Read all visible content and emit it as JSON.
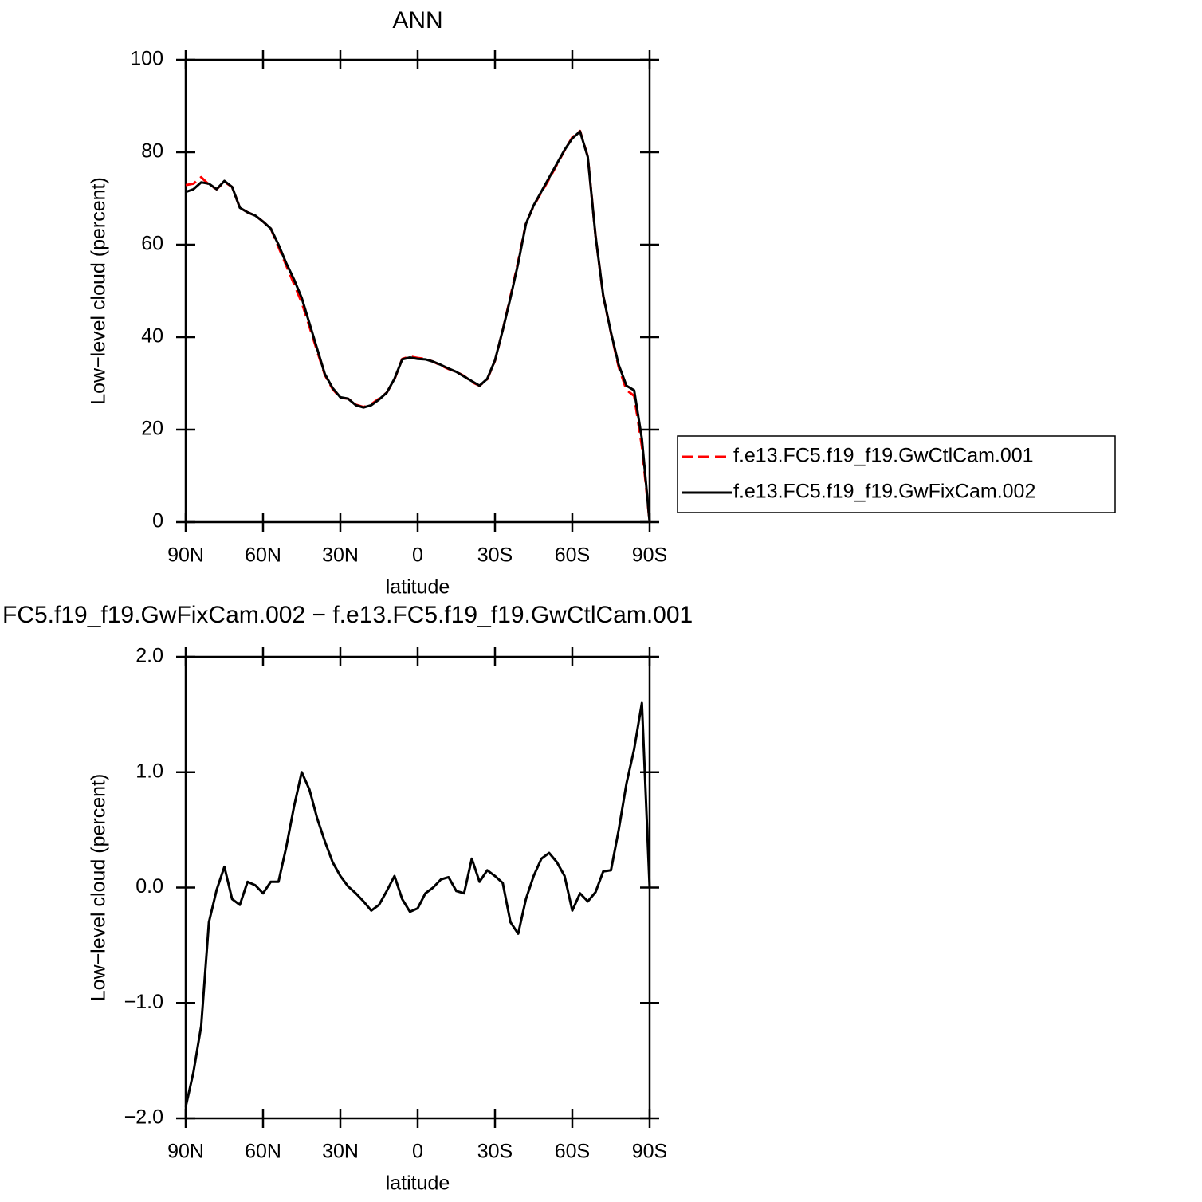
{
  "chart_data": [
    {
      "type": "line",
      "title": "ANN",
      "xlabel": "latitude",
      "ylabel": "Low−level cloud (percent)",
      "x": [
        90,
        87,
        84,
        81,
        78,
        75,
        72,
        69,
        66,
        63,
        60,
        57,
        54,
        51,
        48,
        45,
        42,
        39,
        36,
        33,
        30,
        27,
        24,
        21,
        18,
        15,
        12,
        9,
        6,
        3,
        0,
        -3,
        -6,
        -9,
        -12,
        -15,
        -18,
        -21,
        -24,
        -27,
        -30,
        -33,
        -36,
        -39,
        -42,
        -45,
        -48,
        -51,
        -54,
        -57,
        -60,
        -63,
        -66,
        -69,
        -72,
        -75,
        -78,
        -81,
        -84,
        -87,
        -90
      ],
      "series": [
        {
          "name": "f.e13.FC5.f19_f19.GwCtlCam.001",
          "color": "#ff0000",
          "dashed": true,
          "values": [
            72.9,
            73.2,
            74.6,
            73,
            72,
            73.6,
            72.5,
            68,
            67,
            66.3,
            65,
            63.5,
            59.5,
            55.5,
            51.5,
            47.5,
            42.3,
            37,
            31.8,
            28.8,
            26.9,
            26.7,
            25.4,
            24.9,
            25.5,
            26.7,
            28,
            30.9,
            35.3,
            35.8,
            35.5,
            35.3,
            34.7,
            33.9,
            33.1,
            32.5,
            31.6,
            30.3,
            29.5,
            30.9,
            34.9,
            41.5,
            48.8,
            56.4,
            64.6,
            68.4,
            71.3,
            74.2,
            77.3,
            80.4,
            83.2,
            84.6,
            79.1,
            62,
            48.9,
            40.9,
            33.5,
            28.6,
            27.3,
            16.4,
            0
          ]
        },
        {
          "name": "f.e13.FC5.f19_f19.GwFixCam.002",
          "color": "#000000",
          "dashed": false,
          "values": [
            71.4,
            72,
            73.5,
            73.2,
            72,
            73.8,
            72.5,
            68,
            67,
            66.3,
            65,
            63.5,
            60,
            56,
            52.5,
            48.5,
            43,
            37.5,
            32,
            29,
            27,
            26.7,
            25.3,
            24.8,
            25.3,
            26.5,
            28,
            31,
            35.2,
            35.6,
            35.3,
            35.2,
            34.7,
            34,
            33.2,
            32.5,
            31.5,
            30.5,
            29.5,
            31,
            35,
            41.5,
            48.5,
            56,
            64.5,
            68.5,
            71.5,
            74.5,
            77.5,
            80.5,
            83,
            84.5,
            79,
            62,
            49,
            41,
            34,
            29.5,
            28.5,
            18,
            0
          ]
        }
      ],
      "xlim": [
        90,
        -90
      ],
      "xticks": [
        {
          "value": 90,
          "label": "90N"
        },
        {
          "value": 60,
          "label": "60N"
        },
        {
          "value": 30,
          "label": "30N"
        },
        0,
        {
          "value": -30,
          "label": "30S"
        },
        {
          "value": -60,
          "label": "60S"
        },
        {
          "value": -90,
          "label": "90S"
        }
      ],
      "ylim": [
        0,
        100
      ],
      "yticks": [
        0,
        20,
        40,
        60,
        80,
        100
      ],
      "grid": false,
      "legend": "right"
    },
    {
      "type": "line",
      "title": "FC5.f19_f19.GwFixCam.002 − f.e13.FC5.f19_f19.GwCtlCam.001",
      "xlabel": "latitude",
      "ylabel": "Low−level cloud (percent)",
      "x": [
        90,
        87,
        84,
        81,
        78,
        75,
        72,
        69,
        66,
        63,
        60,
        57,
        54,
        51,
        48,
        45,
        42,
        39,
        36,
        33,
        30,
        27,
        24,
        21,
        18,
        15,
        12,
        9,
        6,
        3,
        0,
        -3,
        -6,
        -9,
        -12,
        -15,
        -18,
        -21,
        -24,
        -27,
        -30,
        -33,
        -36,
        -39,
        -42,
        -45,
        -48,
        -51,
        -54,
        -57,
        -60,
        -63,
        -66,
        -69,
        -72,
        -75,
        -78,
        -81,
        -84,
        -87,
        -90
      ],
      "values": [
        -1.9,
        -1.6,
        -1.2,
        -0.3,
        -0.02,
        0.18,
        -0.1,
        -0.15,
        0.05,
        0.02,
        -0.05,
        0.05,
        0.05,
        0.35,
        0.7,
        1.0,
        0.85,
        0.6,
        0.4,
        0.22,
        0.1,
        0.01,
        -0.05,
        -0.12,
        -0.2,
        -0.15,
        -0.03,
        0.1,
        -0.1,
        -0.21,
        -0.18,
        -0.05,
        0.0,
        0.07,
        0.09,
        -0.03,
        -0.05,
        0.25,
        0.05,
        0.15,
        0.1,
        0.04,
        -0.3,
        -0.4,
        -0.1,
        0.1,
        0.25,
        0.3,
        0.22,
        0.1,
        -0.2,
        -0.05,
        -0.12,
        -0.04,
        0.14,
        0.15,
        0.5,
        0.9,
        1.2,
        1.6,
        0.0
      ],
      "color": "#000000",
      "xlim": [
        90,
        -90
      ],
      "xticks": [
        {
          "value": 90,
          "label": "90N"
        },
        {
          "value": 60,
          "label": "60N"
        },
        {
          "value": 30,
          "label": "30N"
        },
        0,
        {
          "value": -30,
          "label": "30S"
        },
        {
          "value": -60,
          "label": "60S"
        },
        {
          "value": -90,
          "label": "90S"
        }
      ],
      "ylim": [
        -2.0,
        2.0
      ],
      "yticks": [
        {
          "value": -2.0,
          "label": "−2.0"
        },
        {
          "value": -1.0,
          "label": "−1.0"
        },
        {
          "value": 0,
          "label": "0.0"
        },
        {
          "value": 1.0,
          "label": "1.0"
        },
        {
          "value": 2.0,
          "label": "2.0"
        }
      ],
      "grid": false
    }
  ]
}
